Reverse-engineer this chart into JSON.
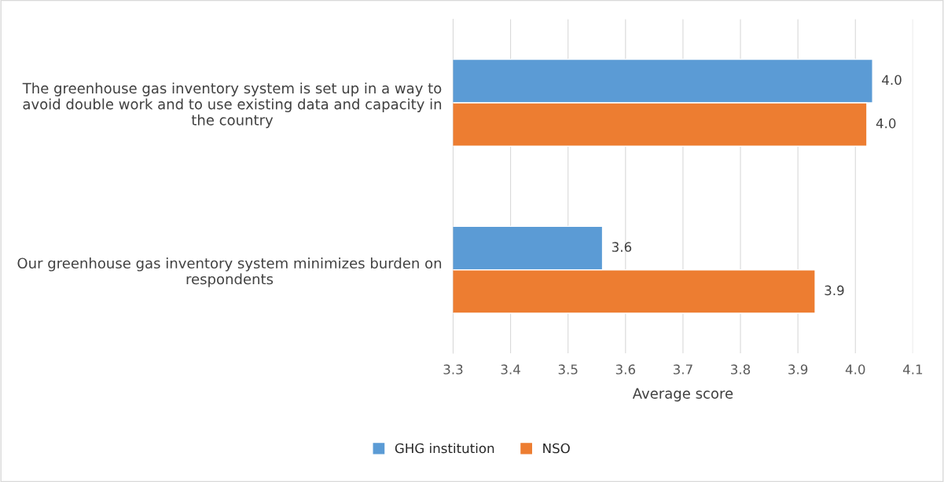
{
  "chart_data": {
    "type": "bar",
    "orientation": "horizontal",
    "categories": [
      "The greenhouse gas inventory system is set up in a way to avoid double work and to use existing data and capacity in the country",
      "Our greenhouse gas inventory system minimizes burden on respondents"
    ],
    "series": [
      {
        "name": "GHG institution",
        "color": "#5b9bd5",
        "values": [
          4.03,
          3.56
        ],
        "value_labels": [
          "4.0",
          "3.6"
        ]
      },
      {
        "name": "NSO",
        "color": "#ed7d31",
        "values": [
          4.02,
          3.93
        ],
        "value_labels": [
          "4.0",
          "3.9"
        ]
      }
    ],
    "xlabel": "Average score",
    "xlim": [
      3.3,
      4.1
    ],
    "xticks": [
      3.3,
      3.4,
      3.5,
      3.6,
      3.7,
      3.8,
      3.9,
      {
        "value": 4.0,
        "label": "4.0"
      },
      4.1
    ],
    "grid": "x",
    "legend": "bottom"
  }
}
